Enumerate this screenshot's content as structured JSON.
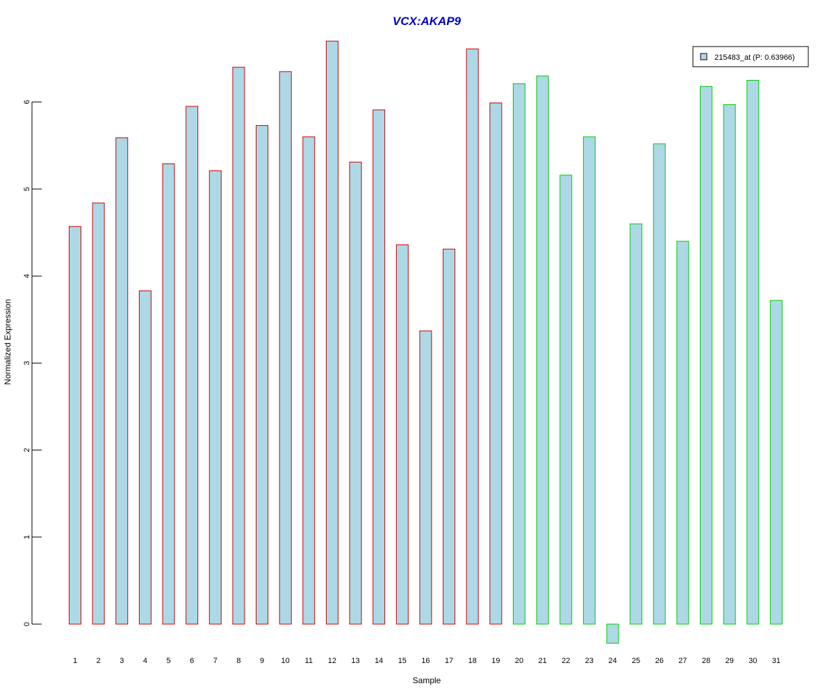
{
  "chart_data": {
    "type": "bar",
    "title": "VCX:AKAP9",
    "xlabel": "Sample",
    "ylabel": "Normalized Expression",
    "ylim": [
      -0.3,
      6.75
    ],
    "yticks": [
      "0",
      "1",
      "2",
      "3",
      "4",
      "5",
      "6"
    ],
    "categories": [
      "1",
      "2",
      "3",
      "4",
      "5",
      "6",
      "7",
      "8",
      "9",
      "10",
      "11",
      "12",
      "13",
      "14",
      "15",
      "16",
      "17",
      "18",
      "19",
      "20",
      "21",
      "22",
      "23",
      "24",
      "25",
      "26",
      "27",
      "28",
      "29",
      "30",
      "31"
    ],
    "values": [
      4.57,
      4.84,
      5.59,
      3.83,
      5.29,
      5.95,
      5.21,
      6.4,
      5.73,
      6.35,
      5.6,
      6.7,
      5.31,
      5.91,
      4.36,
      3.37,
      4.31,
      6.61,
      5.99,
      6.21,
      6.3,
      5.16,
      5.6,
      -0.22,
      4.6,
      5.52,
      4.4,
      6.18,
      5.97,
      6.25,
      3.72
    ],
    "groups": [
      "a",
      "a",
      "a",
      "a",
      "a",
      "a",
      "a",
      "a",
      "a",
      "a",
      "a",
      "a",
      "a",
      "a",
      "a",
      "a",
      "a",
      "a",
      "a",
      "b",
      "b",
      "b",
      "b",
      "b",
      "b",
      "b",
      "b",
      "b",
      "b",
      "b",
      "b"
    ],
    "grid": false,
    "legend": {
      "position": "top-right",
      "entries": [
        "215483_at (P: 0.63966)"
      ]
    },
    "colors": {
      "title": "#0000cc",
      "bar_fill": "#add8e6",
      "group_a_border": "#cc0000",
      "group_b_border": "#00cc00",
      "axis": "#000000"
    }
  }
}
